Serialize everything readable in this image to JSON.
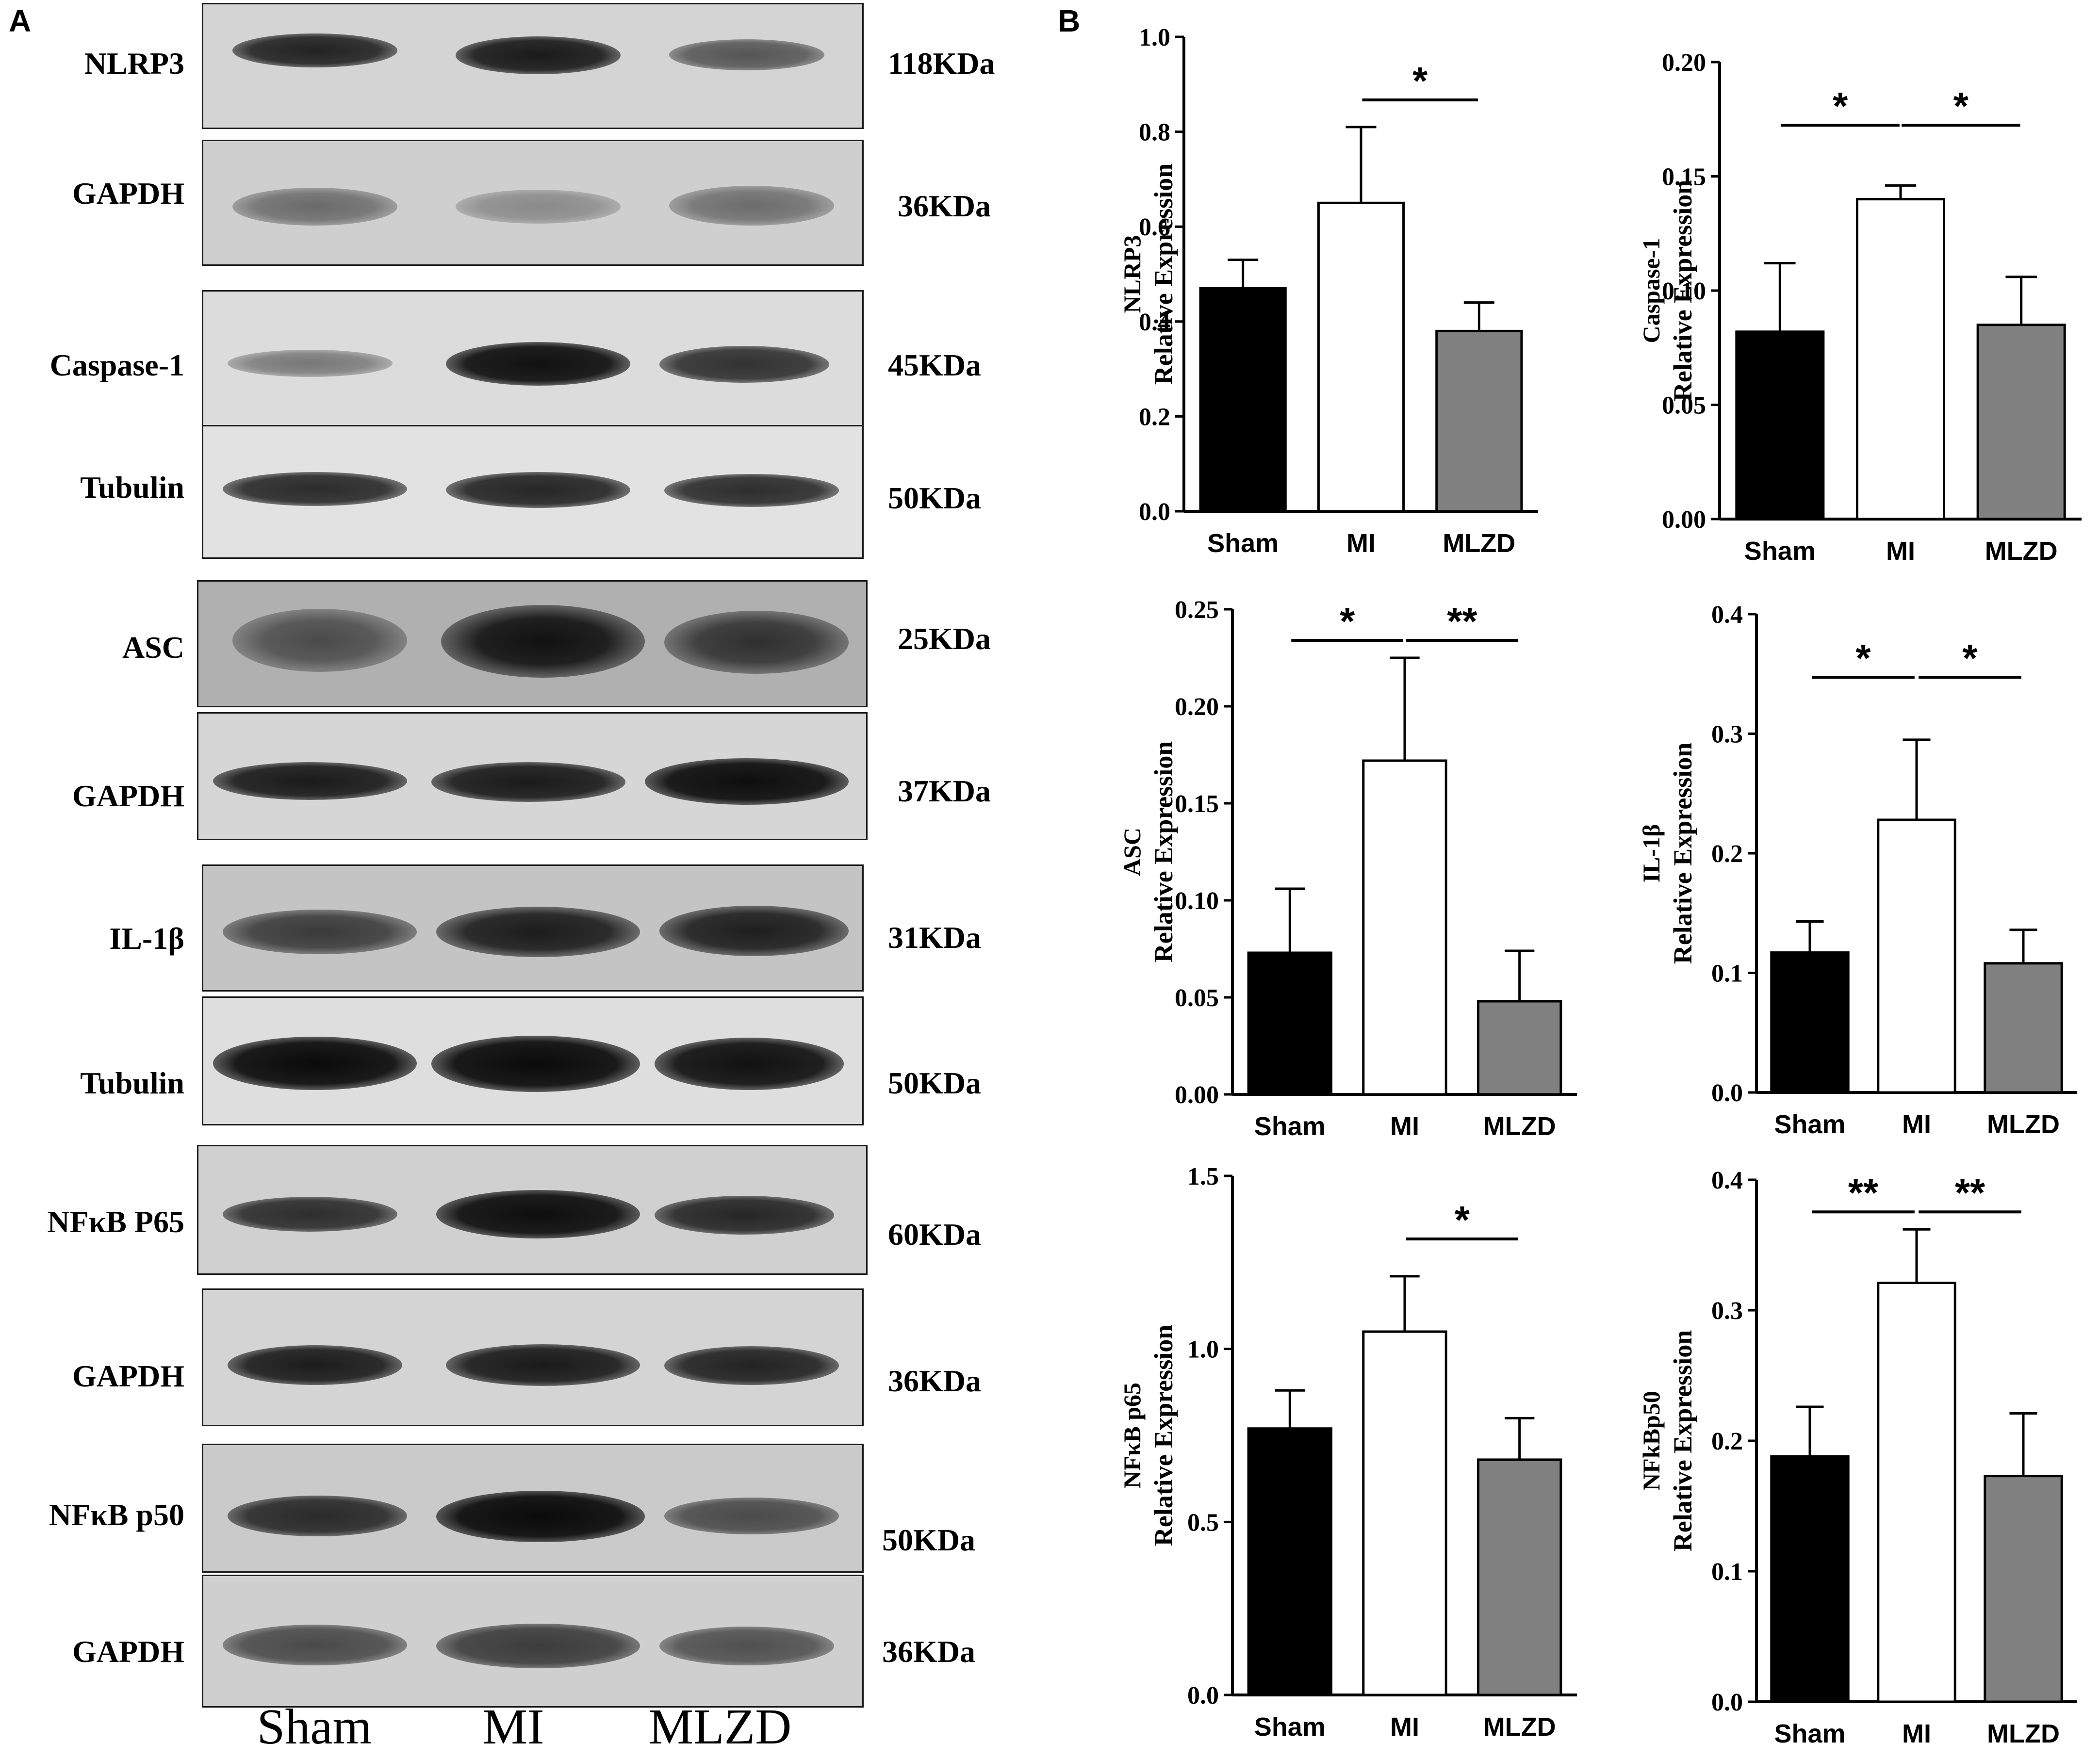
{
  "panels": {
    "a": "A",
    "b": "B"
  },
  "lanes": [
    "Sham",
    "MI",
    "MLZD"
  ],
  "blots": [
    {
      "label": "NLRP3",
      "kda": "118KDa"
    },
    {
      "label": "GAPDH",
      "kda": "36KDa"
    },
    {
      "label": "Caspase-1",
      "kda": "45KDa"
    },
    {
      "label": "Tubulin",
      "kda": "50KDa"
    },
    {
      "label": "ASC",
      "kda": "25KDa"
    },
    {
      "label": "GAPDH",
      "kda": "37KDa"
    },
    {
      "label": "IL-1β",
      "kda": "31KDa"
    },
    {
      "label": "Tubulin",
      "kda": "50KDa"
    },
    {
      "label": "NFκB P65",
      "kda": "60KDa"
    },
    {
      "label": "GAPDH",
      "kda": "36KDa"
    },
    {
      "label": "NFκB p50",
      "kda": "50KDa"
    },
    {
      "label": "GAPDH",
      "kda": "36KDa"
    }
  ],
  "colors": {
    "Sham": "#000000",
    "MI": "#ffffff",
    "MLZD": "#808080"
  },
  "chart_data": [
    {
      "type": "bar",
      "categories": [
        "Sham",
        "MI",
        "MLZD"
      ],
      "values": [
        0.47,
        0.65,
        0.38
      ],
      "errors": [
        0.06,
        0.16,
        0.06
      ],
      "ylabel": [
        "NLRP3",
        "Relative Expression"
      ],
      "ylim": [
        0,
        1.0
      ],
      "yticks": [
        "0.0",
        "0.2",
        "0.4",
        "0.6",
        "0.8",
        "1.0"
      ],
      "significance": [
        {
          "from": "MI",
          "to": "MLZD",
          "label": "*"
        }
      ]
    },
    {
      "type": "bar",
      "categories": [
        "Sham",
        "MI",
        "MLZD"
      ],
      "values": [
        0.082,
        0.14,
        0.085
      ],
      "errors": [
        0.03,
        0.006,
        0.021
      ],
      "ylabel": [
        "Caspase-1",
        "Relative Expression"
      ],
      "ylim": [
        0,
        0.2
      ],
      "yticks": [
        "0.00",
        "0.05",
        "0.10",
        "0.15",
        "0.20"
      ],
      "significance": [
        {
          "from": "Sham",
          "to": "MI",
          "label": "*"
        },
        {
          "from": "MI",
          "to": "MLZD",
          "label": "*"
        }
      ]
    },
    {
      "type": "bar",
      "categories": [
        "Sham",
        "MI",
        "MLZD"
      ],
      "values": [
        0.073,
        0.172,
        0.048
      ],
      "errors": [
        0.033,
        0.053,
        0.026
      ],
      "ylabel": [
        "ASC",
        "Relative Expression"
      ],
      "ylim": [
        0,
        0.25
      ],
      "yticks": [
        "0.00",
        "0.05",
        "0.10",
        "0.15",
        "0.20",
        "0.25"
      ],
      "significance": [
        {
          "from": "Sham",
          "to": "MI",
          "label": "*"
        },
        {
          "from": "MI",
          "to": "MLZD",
          "label": "**"
        }
      ]
    },
    {
      "type": "bar",
      "categories": [
        "Sham",
        "MI",
        "MLZD"
      ],
      "values": [
        0.117,
        0.228,
        0.108
      ],
      "errors": [
        0.026,
        0.067,
        0.028
      ],
      "ylabel": [
        "IL-1β",
        "Relative Expression"
      ],
      "ylim": [
        0,
        0.4
      ],
      "yticks": [
        "0.0",
        "0.1",
        "0.2",
        "0.3",
        "0.4"
      ],
      "significance": [
        {
          "from": "Sham",
          "to": "MI",
          "label": "*"
        },
        {
          "from": "MI",
          "to": "MLZD",
          "label": "*"
        }
      ]
    },
    {
      "type": "bar",
      "categories": [
        "Sham",
        "MI",
        "MLZD"
      ],
      "values": [
        0.77,
        1.05,
        0.68
      ],
      "errors": [
        0.11,
        0.16,
        0.12
      ],
      "ylabel": [
        "NFκB p65",
        "Relative Expression"
      ],
      "ylim": [
        0,
        1.5
      ],
      "yticks": [
        "0.0",
        "0.5",
        "1.0",
        "1.5"
      ],
      "significance": [
        {
          "from": "MI",
          "to": "MLZD",
          "label": "*"
        }
      ]
    },
    {
      "type": "bar",
      "categories": [
        "Sham",
        "MI",
        "MLZD"
      ],
      "values": [
        0.188,
        0.321,
        0.173
      ],
      "errors": [
        0.038,
        0.041,
        0.048
      ],
      "ylabel": [
        "NFkBp50",
        "Relative Expression"
      ],
      "ylim": [
        0,
        0.4
      ],
      "yticks": [
        "0.0",
        "0.1",
        "0.2",
        "0.3",
        "0.4"
      ],
      "significance": [
        {
          "from": "Sham",
          "to": "MI",
          "label": "**"
        },
        {
          "from": "MI",
          "to": "MLZD",
          "label": "**"
        }
      ]
    }
  ]
}
